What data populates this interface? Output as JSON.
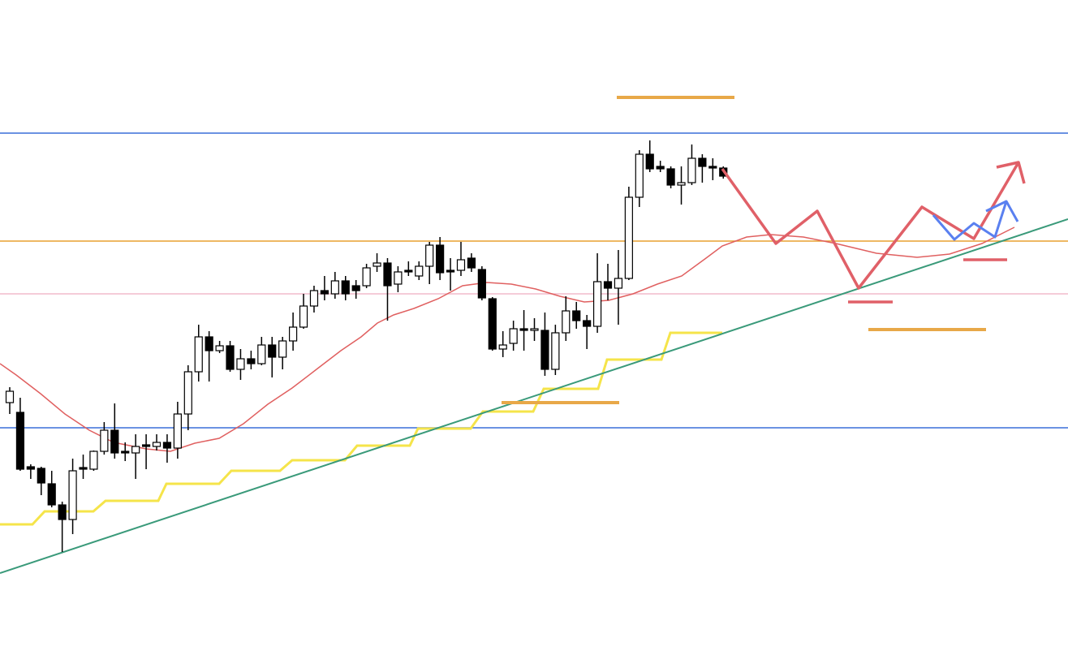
{
  "chart_data": {
    "type": "candlestick",
    "ylim": [
      0,
      802
    ],
    "up_color": "#ffffff",
    "down_color": "#000000",
    "edge_color": "#000000",
    "open": [
      306,
      294,
      227,
      225,
      206,
      180,
      162,
      226,
      224,
      246,
      272,
      246,
      244,
      254,
      252,
      257,
      250,
      292,
      344,
      387,
      370,
      376,
      347,
      360,
      354,
      377,
      362,
      382,
      399,
      425,
      444,
      440,
      456,
      450,
      450,
      474,
      478,
      452,
      469,
      462,
      474,
      500,
      469,
      469,
      484,
      470,
      434,
      372,
      379,
      397,
      395,
      395,
      347,
      392,
      419,
      407,
      400,
      455,
      447,
      459,
      559,
      612,
      597,
      594,
      574,
      577,
      607,
      597,
      595
    ],
    "high": [
      325,
      312,
      230,
      227,
      222,
      184,
      237,
      242,
      247,
      282,
      305,
      257,
      267,
      267,
      267,
      267,
      307,
      352,
      402,
      394,
      382,
      382,
      372,
      370,
      387,
      387,
      387,
      417,
      440,
      450,
      462,
      467,
      462,
      457,
      477,
      490,
      484,
      474,
      480,
      480,
      504,
      510,
      484,
      504,
      490,
      474,
      436,
      394,
      407,
      420,
      410,
      417,
      402,
      437,
      430,
      414,
      490,
      477,
      494,
      572,
      617,
      629,
      604,
      597,
      597,
      624,
      612,
      607,
      597
    ],
    "low": [
      292,
      222,
      212,
      192,
      177,
      122,
      144,
      212,
      222,
      242,
      237,
      234,
      212,
      224,
      247,
      232,
      237,
      272,
      332,
      332,
      367,
      344,
      334,
      347,
      352,
      337,
      347,
      370,
      397,
      417,
      432,
      434,
      432,
      434,
      447,
      467,
      407,
      442,
      462,
      457,
      452,
      457,
      444,
      462,
      467,
      432,
      370,
      362,
      370,
      370,
      382,
      339,
      340,
      382,
      397,
      372,
      392,
      432,
      402,
      457,
      547,
      590,
      590,
      570,
      550,
      574,
      577,
      580,
      582
    ],
    "close": [
      320,
      224,
      224,
      207,
      180,
      162,
      222,
      224,
      246,
      272,
      244,
      244,
      252,
      252,
      257,
      250,
      292,
      344,
      387,
      370,
      376,
      347,
      360,
      354,
      377,
      362,
      382,
      399,
      425,
      444,
      440,
      456,
      440,
      444,
      472,
      478,
      450,
      467,
      467,
      474,
      500,
      466,
      467,
      482,
      472,
      435,
      372,
      377,
      397,
      395,
      397,
      347,
      392,
      419,
      407,
      400,
      455,
      447,
      459,
      559,
      612,
      594,
      594,
      574,
      577,
      607,
      597,
      595,
      585
    ],
    "levels": [
      {
        "value": 638,
        "color": "#3a6fd8"
      },
      {
        "value": 275,
        "color": "#3a6fd8"
      },
      {
        "value": 505,
        "color": "#e8a030"
      },
      {
        "value": 440,
        "color": "#f2bccb"
      }
    ]
  }
}
